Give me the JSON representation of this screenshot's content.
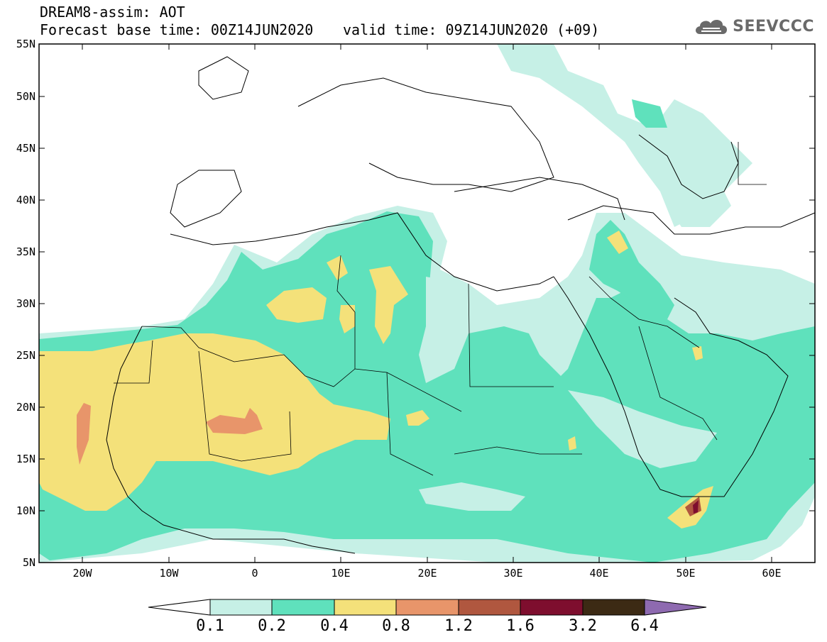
{
  "header": {
    "title_line1": "DREAM8-assim: AOT",
    "base_time": "Forecast base time: 00Z14JUN2020",
    "valid_time": "valid time: 09Z14JUN2020 (+09)",
    "logo_text": "SEEVCCC",
    "logo_icon": "cloud-logo-icon"
  },
  "map": {
    "lat_labels": [
      "55N",
      "50N",
      "45N",
      "40N",
      "35N",
      "30N",
      "25N",
      "20N",
      "15N",
      "10N",
      "5N"
    ],
    "lon_labels": [
      "20W",
      "10W",
      "0",
      "10E",
      "20E",
      "30E",
      "40E",
      "50E",
      "60E"
    ]
  },
  "colorbar": {
    "ticks": [
      "0.1",
      "0.2",
      "0.4",
      "0.8",
      "1.2",
      "1.6",
      "3.2",
      "6.4"
    ],
    "colors": [
      "#c6f0e6",
      "#5fe1bc",
      "#f4e17a",
      "#e8956a",
      "#b0573f",
      "#7e0e2e",
      "#3c2a14",
      "#8e6ab0"
    ]
  },
  "palette": {
    "c01": "#c6f0e6",
    "c02": "#5fe1bc",
    "c04": "#f4e17a",
    "c08": "#e8956a",
    "c12": "#b0573f",
    "c16": "#7e0e2e"
  }
}
